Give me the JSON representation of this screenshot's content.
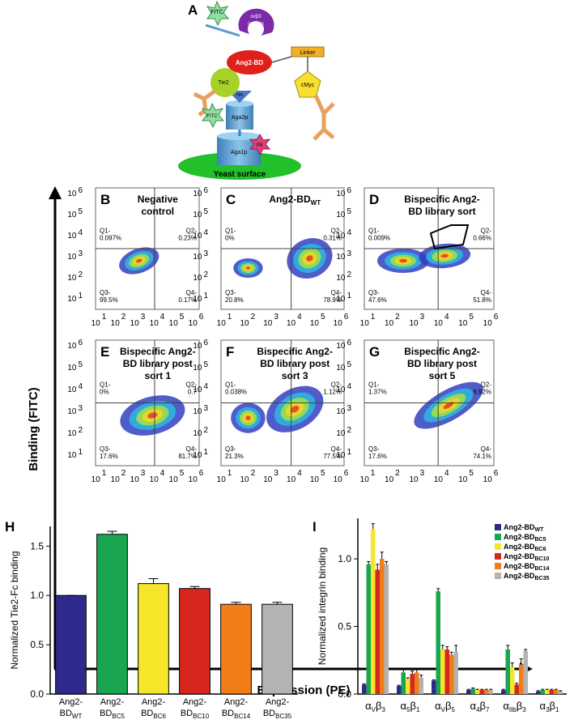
{
  "panel_a": {
    "letter": "A",
    "fitc_top": "FITC",
    "integrin": [
      "αvβ3",
      "integrin"
    ],
    "ang2bd": "Ang2-BD",
    "linker": "Linker",
    "tie2": "Tie2",
    "ha": "HA",
    "cmyc": "cMyc",
    "aga2p": "Aga2p",
    "fitc_low": "FITC",
    "pe": "PE",
    "aga1p": "Aga1p",
    "yeast": "Yeast surface"
  },
  "flow": {
    "axis_y": "Binding (FITC)",
    "axis_x": "Expression (PE)",
    "ticks": {
      "x": [
        {
          "base": "10",
          "exp": "1"
        },
        {
          "base": "10",
          "exp": "2"
        },
        {
          "base": "10",
          "exp": "3"
        },
        {
          "base": "10",
          "exp": "4"
        },
        {
          "base": "10",
          "exp": "5"
        },
        {
          "base": "10",
          "exp": "6"
        }
      ],
      "y": [
        {
          "base": "10",
          "exp": "6"
        },
        {
          "base": "10",
          "exp": "5"
        },
        {
          "base": "10",
          "exp": "4"
        },
        {
          "base": "10",
          "exp": "3"
        },
        {
          "base": "10",
          "exp": "2"
        },
        {
          "base": "10",
          "exp": "1"
        }
      ]
    },
    "quadrant_names": [
      "Q1-",
      "Q2-",
      "Q3-",
      "Q4-"
    ],
    "panels": [
      {
        "letter": "B",
        "title": [
          "Negative",
          "control"
        ],
        "quadrants": [
          "0.097%",
          "0.23%",
          "99.5%",
          "0.17%"
        ]
      },
      {
        "letter": "C",
        "title": [
          "Ang2-BD"
        ],
        "title_sub": "WT",
        "quadrants": [
          "0%",
          "0.31%",
          "20.8%",
          "78.9%"
        ]
      },
      {
        "letter": "D",
        "title": [
          "Bispecific Ang2-",
          "BD  library sort"
        ],
        "quadrants": [
          "0.009%",
          "0.66%",
          "47.6%",
          "51.8%"
        ]
      },
      {
        "letter": "E",
        "title": [
          "Bispecific Ang2-",
          "BD library post",
          "sort 1"
        ],
        "quadrants": [
          "0%",
          "0.7",
          "17.6%",
          "81.7%"
        ]
      },
      {
        "letter": "F",
        "title": [
          "Bispecific Ang2-",
          "BD library post",
          "sort 3"
        ],
        "quadrants": [
          "0.038%",
          "1.12%",
          "21.3%",
          "77.5%"
        ]
      },
      {
        "letter": "G",
        "title": [
          "Bispecific Ang2-",
          "BD library post",
          "sort 5"
        ],
        "quadrants": [
          "1.37%",
          "6.92%",
          "17.6%",
          "74.1%"
        ]
      }
    ]
  },
  "chart_data": [
    {
      "type": "bar",
      "letter": "H",
      "ylabel": "Normalized Tie2-Fc binding",
      "categories": [
        {
          "line1": "Ang2-",
          "line2": "BD",
          "sub": "WT"
        },
        {
          "line1": "Ang2-",
          "line2": "BD",
          "sub": "BC5"
        },
        {
          "line1": "Ang2-",
          "line2": "BD",
          "sub": "BC6"
        },
        {
          "line1": "Ang2-",
          "line2": "BD",
          "sub": "BC10"
        },
        {
          "line1": "Ang2-",
          "line2": "BD",
          "sub": "BC14"
        },
        {
          "line1": "Ang2-",
          "line2": "BD",
          "sub": "BC35"
        }
      ],
      "values": [
        1.0,
        1.62,
        1.12,
        1.07,
        0.91,
        0.91
      ],
      "errors": [
        0,
        0.03,
        0.05,
        0.02,
        0.02,
        0.02
      ],
      "colors": [
        "#2e2a8c",
        "#1aa550",
        "#f5e62a",
        "#d7261e",
        "#f07d18",
        "#b3b3b3"
      ],
      "ylim": [
        0,
        1.7
      ],
      "yticks": [
        {
          "value": 0,
          "label": "0.0"
        },
        0.5,
        {
          "value": 1,
          "label": "1.0"
        },
        1.5
      ]
    },
    {
      "type": "grouped_bar",
      "letter": "I",
      "ylabel": "Normalized integrin binding",
      "categories": [
        {
          "a": "α",
          "as": "V",
          "b": "β",
          "bs": "3"
        },
        {
          "a": "α",
          "as": "5",
          "b": "β",
          "bs": "1"
        },
        {
          "a": "α",
          "as": "V",
          "b": "β",
          "bs": "5"
        },
        {
          "a": "α",
          "as": "4",
          "b": "β",
          "bs": "7"
        },
        {
          "a": "α",
          "as": "IIb",
          "b": "β",
          "bs": "3"
        },
        {
          "a": "α",
          "as": "3",
          "b": "β",
          "bs": "1"
        }
      ],
      "series": [
        {
          "name": {
            "base": "Ang2-BD",
            "sub": "WT"
          },
          "color": "#2e2a8c",
          "values": [
            0.07,
            0.06,
            0.1,
            0.03,
            0.03,
            0.02
          ],
          "errors": [
            0.005,
            0.005,
            0.005,
            0.005,
            0.005,
            0.005
          ]
        },
        {
          "name": {
            "base": "Ang2-BD",
            "sub": "BC5"
          },
          "color": "#1aa550",
          "values": [
            0.96,
            0.16,
            0.76,
            0.04,
            0.33,
            0.03
          ],
          "errors": [
            0.02,
            0.02,
            0.02,
            0.005,
            0.03,
            0.005
          ]
        },
        {
          "name": {
            "base": "Ang2-BD",
            "sub": "BC6"
          },
          "color": "#f5e62a",
          "values": [
            1.22,
            0.11,
            0.33,
            0.03,
            0.2,
            0.03
          ],
          "errors": [
            0.04,
            0.01,
            0.03,
            0.005,
            0.03,
            0.005
          ]
        },
        {
          "name": {
            "base": "Ang2-BD",
            "sub": "BC10"
          },
          "color": "#d7261e",
          "values": [
            0.92,
            0.15,
            0.33,
            0.03,
            0.07,
            0.03
          ],
          "errors": [
            0.04,
            0.02,
            0.02,
            0.005,
            0.01,
            0.005
          ]
        },
        {
          "name": {
            "base": "Ang2-BD",
            "sub": "BC14"
          },
          "color": "#f07d18",
          "values": [
            1.0,
            0.16,
            0.29,
            0.03,
            0.22,
            0.03
          ],
          "errors": [
            0.05,
            0.02,
            0.02,
            0.005,
            0.04,
            0.005
          ]
        },
        {
          "name": {
            "base": "Ang2-BD",
            "sub": "BC35"
          },
          "color": "#b3b3b3",
          "values": [
            0.96,
            0.12,
            0.31,
            0.03,
            0.32,
            0.02
          ],
          "errors": [
            0.02,
            0.02,
            0.05,
            0.005,
            0.01,
            0.005
          ]
        }
      ],
      "ylim": [
        0,
        1.3
      ],
      "yticks": [
        {
          "value": 0,
          "label": "0.0"
        },
        0.5,
        {
          "value": 1,
          "label": "1.0"
        }
      ]
    }
  ]
}
